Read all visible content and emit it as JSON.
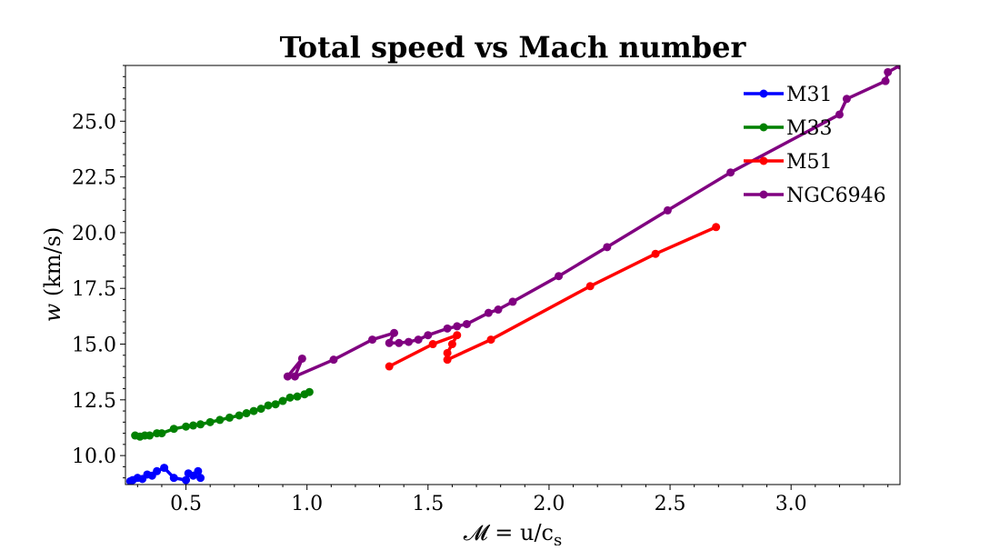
{
  "chart_data": {
    "type": "line",
    "title": "Total speed vs Mach number",
    "xlabel": "𝓜 = u/c",
    "xlabel_sub": "s",
    "ylabel_var": "w",
    "ylabel_unit": " (km/s)",
    "xlim": [
      0.25,
      3.45
    ],
    "ylim": [
      8.7,
      27.5
    ],
    "x_ticks": [
      0.5,
      1.0,
      1.5,
      2.0,
      2.5,
      3.0
    ],
    "x_tick_labels": [
      "0.5",
      "1.0",
      "1.5",
      "2.0",
      "2.5",
      "3.0"
    ],
    "y_ticks": [
      10.0,
      12.5,
      15.0,
      17.5,
      20.0,
      22.5,
      25.0
    ],
    "y_tick_labels": [
      "10.0",
      "12.5",
      "15.0",
      "17.5",
      "20.0",
      "22.5",
      "25.0"
    ],
    "grid": false,
    "legend_position": "top-right",
    "series": [
      {
        "name": "M31",
        "color": "#0000ff",
        "points": [
          [
            0.56,
            9.0
          ],
          [
            0.55,
            9.3
          ],
          [
            0.53,
            9.1
          ],
          [
            0.51,
            9.2
          ],
          [
            0.5,
            8.9
          ],
          [
            0.45,
            9.0
          ],
          [
            0.41,
            9.45
          ],
          [
            0.38,
            9.3
          ],
          [
            0.36,
            9.1
          ],
          [
            0.34,
            9.15
          ],
          [
            0.32,
            8.95
          ],
          [
            0.3,
            9.0
          ],
          [
            0.28,
            8.9
          ],
          [
            0.27,
            8.85
          ]
        ]
      },
      {
        "name": "M33",
        "color": "#008000",
        "points": [
          [
            0.29,
            10.9
          ],
          [
            0.31,
            10.85
          ],
          [
            0.33,
            10.9
          ],
          [
            0.35,
            10.9
          ],
          [
            0.38,
            11.0
          ],
          [
            0.4,
            11.0
          ],
          [
            0.45,
            11.2
          ],
          [
            0.5,
            11.3
          ],
          [
            0.53,
            11.35
          ],
          [
            0.56,
            11.4
          ],
          [
            0.6,
            11.5
          ],
          [
            0.64,
            11.6
          ],
          [
            0.68,
            11.7
          ],
          [
            0.72,
            11.8
          ],
          [
            0.75,
            11.9
          ],
          [
            0.78,
            12.0
          ],
          [
            0.81,
            12.1
          ],
          [
            0.84,
            12.25
          ],
          [
            0.87,
            12.3
          ],
          [
            0.9,
            12.45
          ],
          [
            0.93,
            12.6
          ],
          [
            0.96,
            12.65
          ],
          [
            0.99,
            12.75
          ],
          [
            1.01,
            12.85
          ]
        ]
      },
      {
        "name": "M51",
        "color": "#ff0000",
        "points": [
          [
            2.69,
            20.25
          ],
          [
            2.44,
            19.05
          ],
          [
            2.17,
            17.6
          ],
          [
            1.76,
            15.2
          ],
          [
            1.58,
            14.3
          ],
          [
            1.58,
            14.6
          ],
          [
            1.6,
            15.0
          ],
          [
            1.62,
            15.4
          ],
          [
            1.52,
            15.0
          ],
          [
            1.34,
            14.0
          ]
        ]
      },
      {
        "name": "NGC6946",
        "color": "#800080",
        "points": [
          [
            3.45,
            27.5
          ],
          [
            3.4,
            27.2
          ],
          [
            3.39,
            26.8
          ],
          [
            3.23,
            26.0
          ],
          [
            3.2,
            25.3
          ],
          [
            2.75,
            22.7
          ],
          [
            2.49,
            21.0
          ],
          [
            2.24,
            19.35
          ],
          [
            2.04,
            18.05
          ],
          [
            1.85,
            16.9
          ],
          [
            1.79,
            16.55
          ],
          [
            1.75,
            16.4
          ],
          [
            1.66,
            15.9
          ],
          [
            1.62,
            15.8
          ],
          [
            1.58,
            15.7
          ],
          [
            1.5,
            15.4
          ],
          [
            1.46,
            15.2
          ],
          [
            1.42,
            15.1
          ],
          [
            1.38,
            15.05
          ],
          [
            1.34,
            15.05
          ],
          [
            1.36,
            15.5
          ],
          [
            1.27,
            15.2
          ],
          [
            1.11,
            14.3
          ],
          [
            0.95,
            13.55
          ],
          [
            0.98,
            14.35
          ],
          [
            0.92,
            13.55
          ]
        ]
      }
    ]
  }
}
